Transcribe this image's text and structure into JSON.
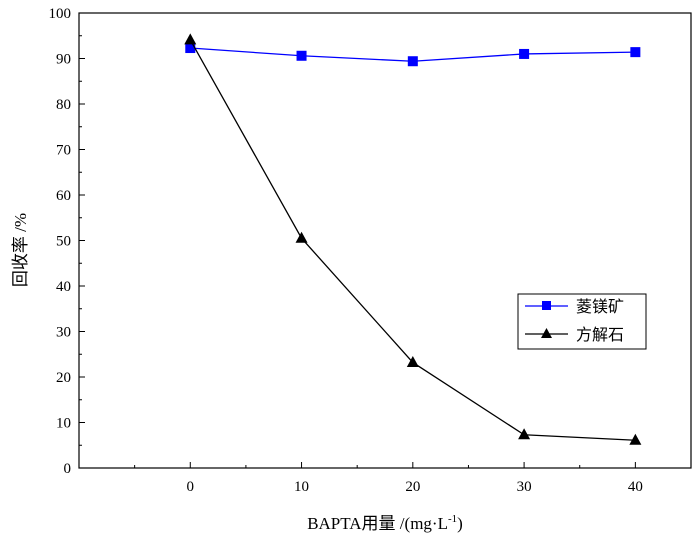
{
  "chart_data": {
    "type": "line",
    "title": "",
    "xlabel": "BAPTA用量 /(mg·L",
    "xlabel_sup": "-1",
    "xlabel_close": ")",
    "ylabel": "回收率 /%",
    "x": [
      0,
      10,
      20,
      30,
      40
    ],
    "xlim": [
      -10,
      45
    ],
    "ylim": [
      0,
      100
    ],
    "xticks": [
      0,
      10,
      20,
      30,
      40
    ],
    "yticks": [
      0,
      10,
      20,
      30,
      40,
      50,
      60,
      70,
      80,
      90,
      100
    ],
    "grid": false,
    "legend_position": "right-middle",
    "series": [
      {
        "name": "菱镁矿",
        "color": "#0000ff",
        "marker": "square",
        "values": [
          92.3,
          90.6,
          89.4,
          91.0,
          91.4
        ]
      },
      {
        "name": "方解石",
        "color": "#000000",
        "marker": "triangle",
        "values": [
          94.1,
          50.5,
          23.2,
          7.3,
          6.1
        ]
      }
    ]
  }
}
